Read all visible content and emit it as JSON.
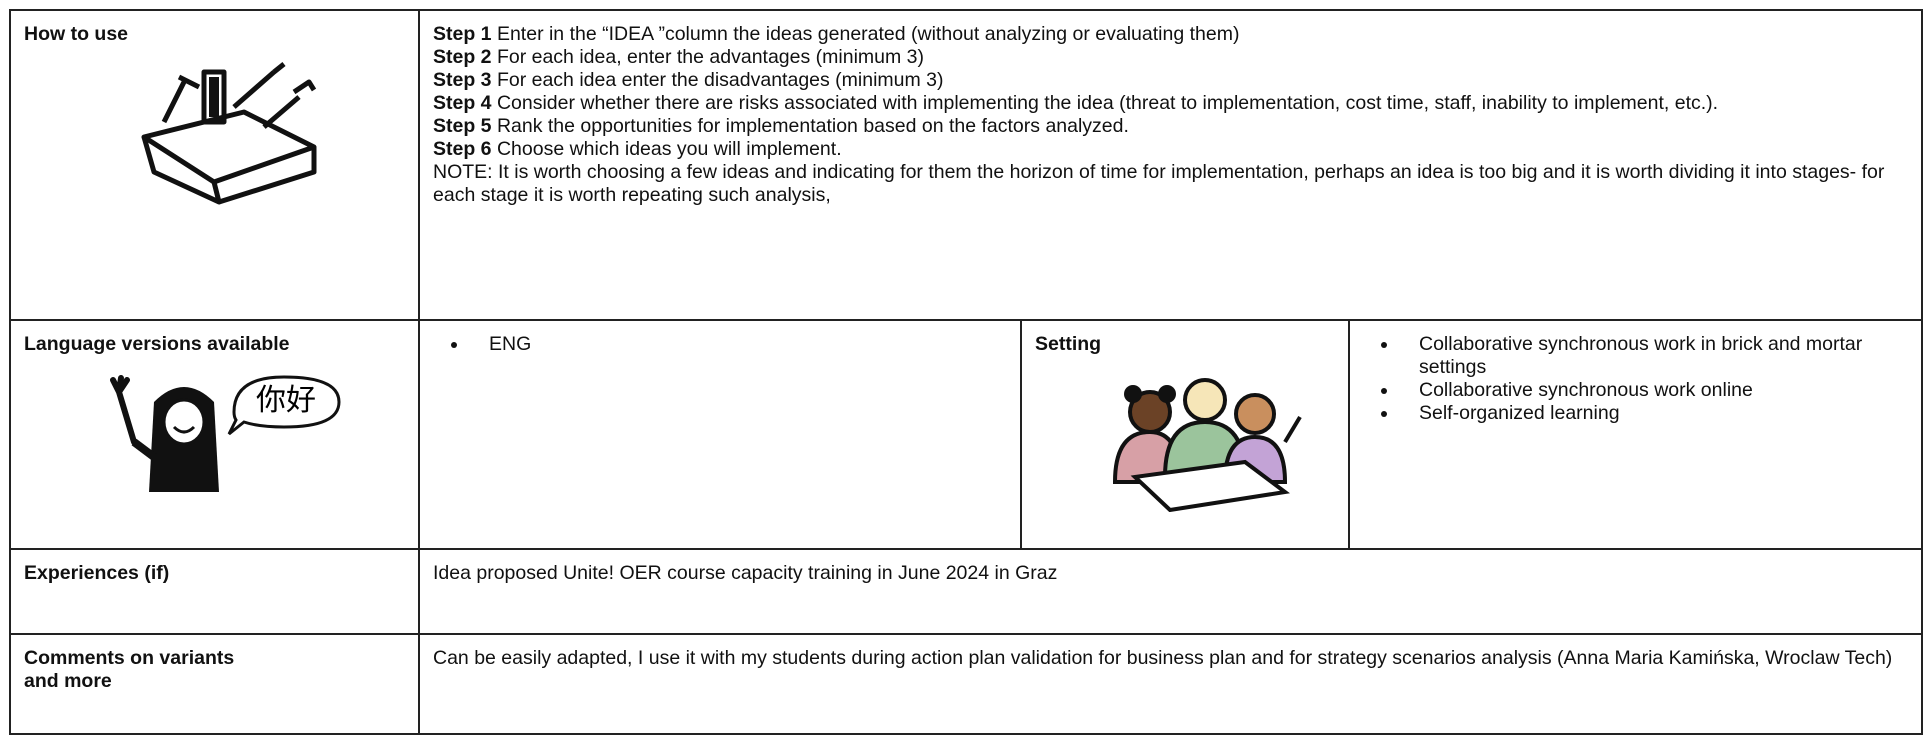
{
  "rows": [
    {
      "label": "How to use",
      "steps": [
        {
          "label": "Step 1",
          "text": "Enter in the “IDEA ”column the ideas generated (without analyzing or evaluating them)"
        },
        {
          "label": "Step 2",
          "text": "For each idea, enter the advantages (minimum 3)"
        },
        {
          "label": "Step 3",
          "text": "For each idea enter the disadvantages (minimum 3)"
        },
        {
          "label": "Step 4",
          "text": "Consider whether there are risks associated with implementing the idea (threat to implementation, cost time, staff, inability to implement, etc.)."
        },
        {
          "label": "Step 5",
          "text": "Rank the opportunities for implementation based on the factors analyzed."
        },
        {
          "label": "Step 6",
          "text": "Choose which ideas you will implement."
        }
      ],
      "note": "NOTE: It is worth choosing a few ideas and indicating for them the horizon of time for implementation, perhaps an idea is too big and it is worth dividing it into stages- for each stage it is worth repeating such analysis,"
    },
    {
      "label": "Language versions available",
      "icon_text": "你好",
      "languages": [
        "ENG"
      ],
      "setting_label": "Setting",
      "settings": [
        "Collaborative synchronous work in brick and mortar settings",
        "Collaborative synchronous work online",
        "Self-organized learning"
      ]
    },
    {
      "label": "Experiences (if)",
      "text": "Idea proposed Unite! OER course capacity training in June 2024 in Graz"
    },
    {
      "label": "Comments on variants\nand more",
      "text": "Can be easily adapted, I use it with my students during action plan validation for business plan and for strategy scenarios analysis (Anna Maria Kamińska, Wroclaw Tech)"
    }
  ]
}
